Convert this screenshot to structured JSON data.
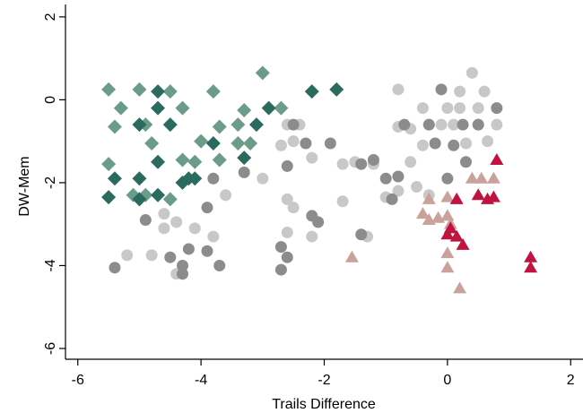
{
  "chart_data": {
    "type": "scatter",
    "x_label": "Trails Difference",
    "y_label": "DW-Mem",
    "xlim": [
      -6.2,
      2.2
    ],
    "ylim": [
      -6.26,
      2.3
    ],
    "xticks": [
      -6,
      -4,
      -2,
      0,
      2
    ],
    "yticks": [
      -6,
      -4,
      -2,
      0,
      2
    ],
    "grid": false,
    "series": [
      {
        "color": "#c8c8c8",
        "marker": "circle",
        "x": [
          -5.2,
          -4.8,
          -4.6,
          -4.6,
          -4.4,
          -4.4,
          -4.1,
          -3.8,
          -3.6,
          -3.0,
          -2.7,
          -2.5,
          -2.6,
          -2.4,
          -2.2,
          -2.6,
          -2.5,
          -2.6,
          -2.2,
          -1.7,
          -1.7,
          -1.5,
          -1.2,
          -0.8,
          -0.6,
          -1.0,
          -0.8,
          -0.6,
          -0.4,
          -0.5,
          -0.8,
          -0.4,
          -0.3,
          -0.1,
          0.0,
          0.1,
          0.2,
          0.3,
          0.4,
          0.5,
          0.5,
          0.65,
          0.8,
          0.6,
          0.2,
          -0.3,
          -1.3
        ],
        "values": [
          -3.75,
          -3.75,
          -2.75,
          -3.1,
          -4.2,
          -2.95,
          -3.1,
          -3.3,
          -2.3,
          -1.9,
          -1.1,
          -1.0,
          -0.6,
          -0.6,
          -1.4,
          -2.4,
          -2.6,
          -3.2,
          -3.3,
          -2.45,
          -1.55,
          -1.5,
          -1.55,
          -0.65,
          -0.7,
          -2.35,
          -2.2,
          -1.5,
          -1.1,
          -2.1,
          0.25,
          -0.2,
          -0.6,
          -0.6,
          -0.2,
          -0.6,
          -0.2,
          -1.05,
          0.65,
          -0.6,
          -0.2,
          -1.0,
          -0.6,
          0.2,
          0.2,
          -2.3,
          -3.3
        ]
      },
      {
        "color": "#8c8c8c",
        "marker": "circle",
        "x": [
          -5.4,
          -4.9,
          -4.5,
          -4.3,
          -4.3,
          -4.2,
          -3.9,
          -3.7,
          -3.9,
          -3.8,
          -3.3,
          -2.6,
          -2.7,
          -2.6,
          -2.7,
          -2.2,
          -2.1,
          -2.3,
          -1.9,
          -1.2,
          -1.4,
          -1.0,
          -0.8,
          -0.9,
          -1.4,
          -0.7,
          -0.3,
          -0.2,
          0.0,
          -0.1,
          0.25,
          0.5,
          0.8,
          0.3,
          0.1,
          -2.5
        ],
        "values": [
          -4.05,
          -2.9,
          -3.8,
          -4.0,
          -4.2,
          -3.6,
          -3.65,
          -4.0,
          -2.6,
          -1.9,
          -1.75,
          -1.6,
          -3.55,
          -3.8,
          -4.1,
          -2.8,
          -2.95,
          -1.05,
          -1.05,
          -1.45,
          -1.55,
          -1.9,
          -1.85,
          -2.4,
          -3.25,
          -0.6,
          -0.6,
          -1.05,
          -1.9,
          0.25,
          -0.6,
          -0.6,
          -0.2,
          -1.5,
          -1.1,
          -0.6
        ]
      },
      {
        "color": "#6b9c8a",
        "marker": "diamond",
        "x": [
          -5.5,
          -5.0,
          -4.5,
          -3.8,
          -3.0,
          -5.3,
          -4.3,
          -3.3,
          -2.7,
          -5.4,
          -4.9,
          -4.0,
          -3.7,
          -3.4,
          -4.8,
          -3.4,
          -3.2,
          -4.3,
          -5.5,
          -3.7,
          -5.1,
          -4.5,
          -4.9,
          -4.1
        ],
        "values": [
          0.25,
          0.25,
          0.2,
          0.2,
          0.65,
          -0.2,
          -0.2,
          -0.25,
          -0.2,
          -0.65,
          -0.6,
          -1.0,
          -0.65,
          -0.6,
          -1.05,
          -1.05,
          -1.05,
          -1.45,
          -1.55,
          -1.45,
          -2.3,
          -2.4,
          -2.3,
          -1.5
        ]
      },
      {
        "color": "#2b6b5f",
        "marker": "diamond",
        "x": [
          -4.7,
          -5.0,
          -4.7,
          -5.4,
          -5.5,
          -5.0,
          -5.0,
          -4.7,
          -4.2,
          -4.1,
          -4.3,
          -3.8,
          -3.3,
          -2.9,
          -2.2,
          -1.8,
          -4.5,
          -3.1,
          -4.7
        ],
        "values": [
          0.2,
          -0.6,
          -0.2,
          -1.9,
          -2.35,
          -1.9,
          -2.4,
          -1.5,
          -1.9,
          -1.9,
          -2.0,
          -1.05,
          -1.4,
          -0.2,
          0.2,
          0.25,
          -0.6,
          -0.6,
          -2.3
        ]
      },
      {
        "color": "#c9a29b",
        "marker": "triangle",
        "x": [
          0.4,
          0.55,
          0.75,
          -0.3,
          0.0,
          -0.4,
          -0.3,
          -0.15,
          0.0,
          0.05,
          0.0,
          0.0,
          0.2,
          -1.55
        ],
        "values": [
          -1.9,
          -1.9,
          -1.9,
          -2.4,
          -2.35,
          -2.75,
          -2.9,
          -2.85,
          -2.8,
          -3.0,
          -3.7,
          -4.05,
          -4.55,
          -3.8
        ]
      },
      {
        "color": "#c0133f",
        "marker": "triangle",
        "x": [
          0.8,
          0.15,
          0.5,
          0.65,
          0.75,
          0.05,
          0.0,
          0.15,
          0.25,
          1.35,
          1.35
        ],
        "values": [
          -1.45,
          -2.4,
          -2.3,
          -2.4,
          -2.35,
          -3.1,
          -3.25,
          -3.3,
          -3.5,
          -3.8,
          -4.05
        ]
      }
    ]
  }
}
